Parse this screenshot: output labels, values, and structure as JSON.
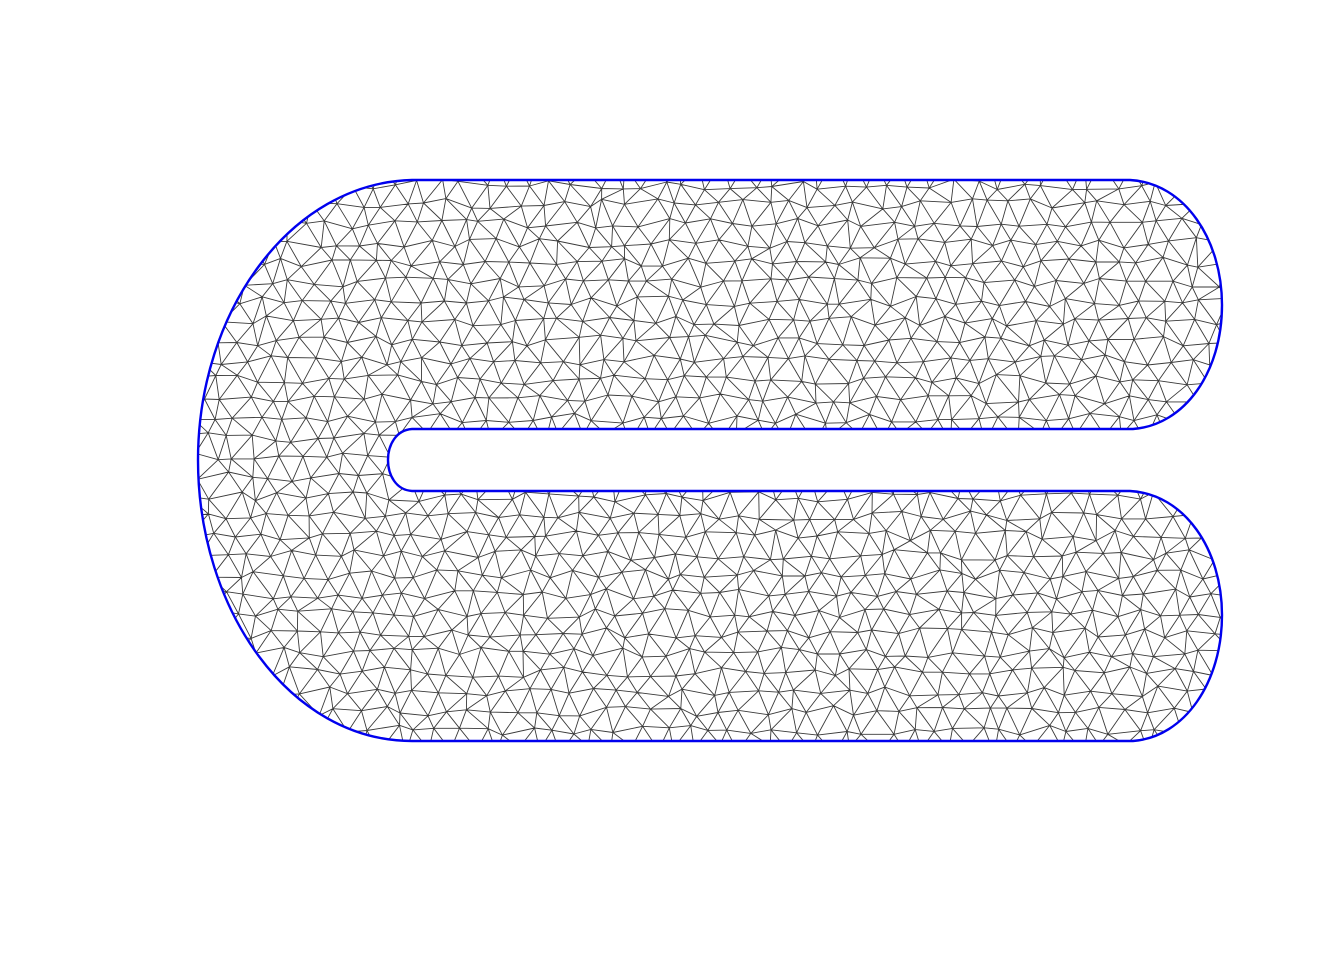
{
  "figure": {
    "type": "triangular-mesh",
    "shape": "horseshoe-domain-with-interior-slot",
    "colors": {
      "background": "#ffffff",
      "mesh_edges": "#3a3a3a",
      "boundary": "#0000ee"
    }
  }
}
